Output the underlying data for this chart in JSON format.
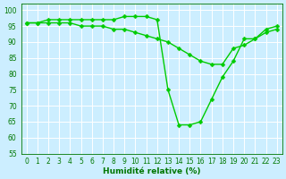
{
  "line1_x": [
    0,
    1,
    2,
    3,
    4,
    5,
    6,
    7,
    8,
    9,
    10,
    11,
    12,
    13,
    14,
    15,
    16,
    17,
    18,
    19,
    20,
    21,
    22,
    23
  ],
  "line1_y": [
    96,
    96,
    97,
    97,
    97,
    97,
    97,
    97,
    97,
    98,
    98,
    98,
    97,
    75,
    64,
    64,
    65,
    72,
    79,
    84,
    91,
    91,
    94,
    95
  ],
  "line2_x": [
    0,
    1,
    2,
    3,
    4,
    5,
    6,
    7,
    8,
    9,
    10,
    11,
    12,
    13,
    14,
    15,
    16,
    17,
    18,
    19,
    20,
    21,
    22,
    23
  ],
  "line2_y": [
    96,
    96,
    96,
    96,
    96,
    95,
    95,
    95,
    94,
    94,
    93,
    92,
    91,
    90,
    88,
    86,
    84,
    83,
    83,
    88,
    89,
    91,
    93,
    94
  ],
  "line_color": "#00cc00",
  "marker": "D",
  "markersize": 2.5,
  "linewidth": 1.0,
  "xlabel": "Humidité relative (%)",
  "xlim": [
    -0.5,
    23.5
  ],
  "ylim": [
    55,
    102
  ],
  "yticks": [
    55,
    60,
    65,
    70,
    75,
    80,
    85,
    90,
    95,
    100
  ],
  "xticks": [
    0,
    1,
    2,
    3,
    4,
    5,
    6,
    7,
    8,
    9,
    10,
    11,
    12,
    13,
    14,
    15,
    16,
    17,
    18,
    19,
    20,
    21,
    22,
    23
  ],
  "bg_color": "#cceeff",
  "grid_color": "#ffffff",
  "axis_color": "#007700",
  "tick_label_color": "#007700",
  "xlabel_color": "#007700",
  "xlabel_fontsize": 6.5,
  "tick_fontsize": 5.5
}
